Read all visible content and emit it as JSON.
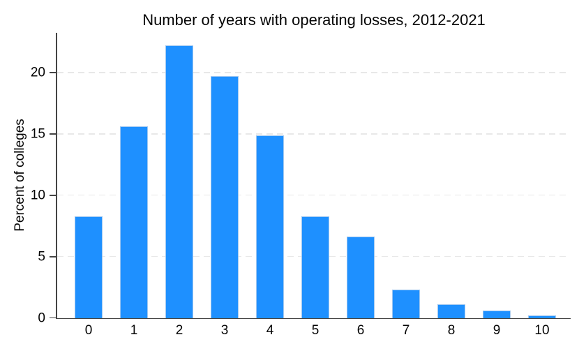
{
  "chart_data": {
    "type": "bar",
    "title": "Number of years with operating losses, 2012-2021",
    "xlabel": "",
    "ylabel": "Percent of colleges",
    "categories": [
      "0",
      "1",
      "2",
      "3",
      "4",
      "5",
      "6",
      "7",
      "8",
      "9",
      "10"
    ],
    "values": [
      8.3,
      15.6,
      22.2,
      19.7,
      14.9,
      8.3,
      6.6,
      2.3,
      1.1,
      0.6,
      0.2
    ],
    "yticks": [
      0,
      5,
      10,
      15,
      20
    ],
    "gridlines_at": [
      5,
      10,
      15,
      20
    ],
    "ylim": [
      0,
      23.2
    ],
    "grid": "horizontal-dashed",
    "legend": "none",
    "colors": {
      "bar_fill": "#1E90FF",
      "bar_border": "#A2C8F0",
      "axis": "#444444",
      "gridline": "#E8E8E8",
      "text": "#050505"
    }
  }
}
